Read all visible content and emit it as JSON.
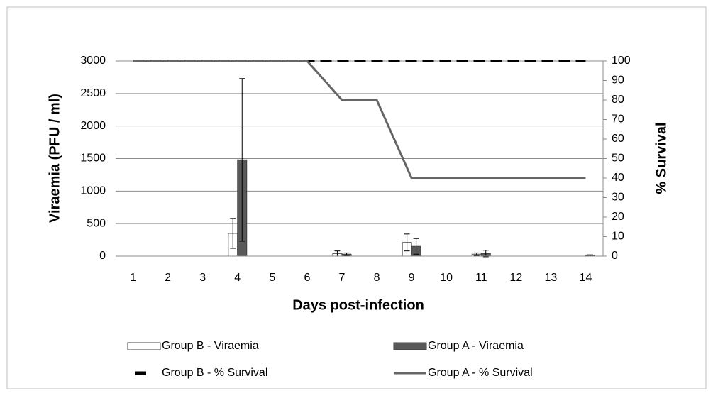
{
  "chart_data": {
    "type": "combo",
    "categories": [
      "1",
      "2",
      "3",
      "4",
      "5",
      "6",
      "7",
      "8",
      "9",
      "10",
      "11",
      "12",
      "13",
      "14"
    ],
    "xlabel": "Days post-infection",
    "ylabel": "Viraemia (PFU / ml)",
    "y2label": "% Survival",
    "ylim": [
      0,
      3000
    ],
    "yticks": [
      0,
      500,
      1000,
      1500,
      2000,
      2500,
      3000
    ],
    "y2lim": [
      0,
      100
    ],
    "y2ticks": [
      0,
      10,
      20,
      30,
      40,
      50,
      60,
      70,
      80,
      90,
      100
    ],
    "grid": true,
    "series": [
      {
        "name": "Group B - Viraemia",
        "type": "bar",
        "color": "#ffffff",
        "values": [
          0,
          0,
          0,
          350,
          0,
          0,
          40,
          0,
          210,
          0,
          30,
          0,
          0,
          0
        ],
        "errors": [
          0,
          0,
          0,
          230,
          0,
          0,
          40,
          0,
          130,
          0,
          20,
          0,
          0,
          0
        ]
      },
      {
        "name": "Group A - Viraemia",
        "type": "bar",
        "color": "#595959",
        "values": [
          0,
          0,
          0,
          1480,
          0,
          0,
          30,
          0,
          150,
          0,
          40,
          0,
          0,
          10
        ],
        "errors": [
          0,
          0,
          0,
          1250,
          0,
          0,
          20,
          0,
          120,
          0,
          50,
          0,
          0,
          10
        ]
      },
      {
        "name": "Group B - % Survival",
        "type": "line",
        "axis": "y2",
        "color": "#000000",
        "dashed": true,
        "values": [
          100,
          100,
          100,
          100,
          100,
          100,
          100,
          100,
          100,
          100,
          100,
          100,
          100,
          100
        ]
      },
      {
        "name": "Group A - % Survival",
        "type": "line",
        "axis": "y2",
        "color": "#666666",
        "values": [
          100,
          100,
          100,
          100,
          100,
          100,
          80,
          80,
          40,
          40,
          40,
          40,
          40,
          40
        ]
      }
    ]
  }
}
